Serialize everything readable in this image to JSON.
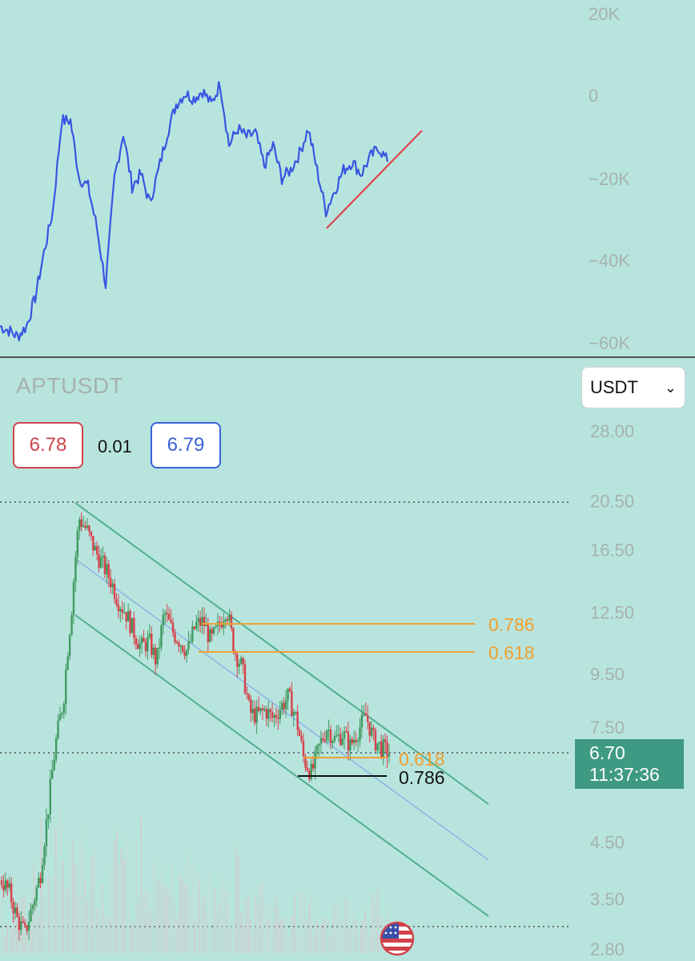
{
  "top_pane": {
    "axis_ticks": [
      "20K",
      "0",
      "−20K",
      "−40K",
      "−60K"
    ]
  },
  "bottom_pane": {
    "symbol": "APTUSDT",
    "currency_select": {
      "value": "USDT",
      "icon": "chevron-down-icon"
    },
    "bid": "6.78",
    "spread": "0.01",
    "ask": "6.79",
    "axis_ticks": [
      "28.00",
      "20.50",
      "16.50",
      "12.50",
      "9.50",
      "7.50",
      "4.50",
      "3.50",
      "2.80"
    ],
    "fib_labels": [
      "0.786",
      "0.618",
      "0.618",
      "0.786"
    ],
    "last_price": "6.70",
    "countdown": "11:37:36",
    "flag_icon": "us-flag-icon"
  },
  "colors": {
    "background": "#b8e4de",
    "indicator_line": "#3a55e0",
    "trendline": "#e0434b",
    "channel": "#4fae93",
    "fib": "#f0a030",
    "candle_up": "#3f9a5f",
    "candle_down": "#d8404a",
    "price_tag": "#3f9a83"
  },
  "chart_data": [
    {
      "type": "line",
      "series": [
        {
          "values": [
            -56000,
            -57000,
            -58500,
            -56000,
            -49000,
            -38000,
            -28000,
            -6000,
            -6000,
            -20000,
            -22000,
            -32000,
            -46000,
            -20000,
            -9000,
            -22000,
            -19000,
            -26000,
            -18000,
            -9000,
            -2000,
            600,
            -600,
            1200,
            -2000,
            3000,
            -12000,
            -8000,
            -10000,
            -9000,
            -17000,
            -12000,
            -20000,
            -18000,
            -14000,
            -8000,
            -18000,
            -28000,
            -23000,
            -18000,
            -16000,
            -19000,
            -15000,
            -12500,
            -16000
          ]
        }
      ],
      "trendline": "rising",
      "ylim": [
        -60000,
        20000
      ]
    },
    {
      "type": "candlestick",
      "symbol": "APTUSDT",
      "scale": "log",
      "ylim": [
        2.8,
        28.0
      ],
      "close_path": [
        3.8,
        3.6,
        3.2,
        3.0,
        3.4,
        3.9,
        5.2,
        7.0,
        8.5,
        12.5,
        19.0,
        18.0,
        16.5,
        15.5,
        14.5,
        13.2,
        12.5,
        11.5,
        10.7,
        11.0,
        10.0,
        12.5,
        11.5,
        11.0,
        10.5,
        11.8,
        12.0,
        11.0,
        11.7,
        12.8,
        10.6,
        9.8,
        8.0,
        7.9,
        8.1,
        7.8,
        8.2,
        8.6,
        7.8,
        6.5,
        6.1,
        6.9,
        7.5,
        7.1,
        7.3,
        6.9,
        7.4,
        7.9,
        7.1,
        6.85,
        6.7
      ],
      "fib_levels": [
        {
          "label": "0.786",
          "price": 11.75
        },
        {
          "label": "0.618",
          "price": 10.35
        },
        {
          "label": "0.618",
          "price": 6.45
        },
        {
          "label": "0.786",
          "price": 6.0
        }
      ],
      "last_price": 6.7
    }
  ]
}
